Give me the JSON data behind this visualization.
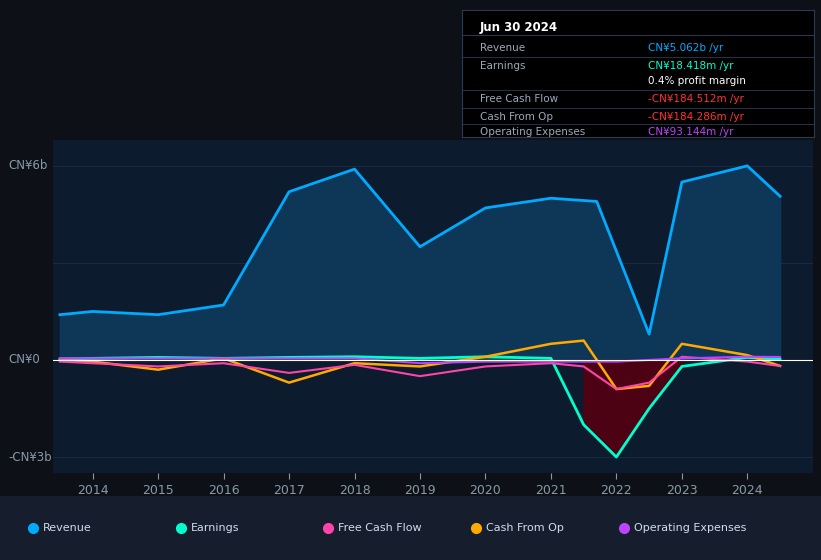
{
  "background_color": "#0d1117",
  "chart_bg": "#0d1b2e",
  "title_box_date": "Jun 30 2024",
  "title_box_rows": [
    {
      "label": "Revenue",
      "value": "CN¥5.062b /yr",
      "value_color": "#00aaff"
    },
    {
      "label": "Earnings",
      "value": "CN¥18.418m /yr",
      "value_color": "#00ffcc"
    },
    {
      "label": "",
      "value": "0.4% profit margin",
      "value_color": "#ffffff"
    },
    {
      "label": "Free Cash Flow",
      "value": "-CN¥184.512m /yr",
      "value_color": "#ff3333"
    },
    {
      "label": "Cash From Op",
      "value": "-CN¥184.286m /yr",
      "value_color": "#ff3333"
    },
    {
      "label": "Operating Expenses",
      "value": "CN¥93.144m /yr",
      "value_color": "#bb44ff"
    }
  ],
  "ylabel_top": "CN¥6b",
  "ylabel_zero": "CN¥0",
  "ylabel_bottom": "-CN¥3b",
  "ylim_min": -3500000000,
  "ylim_max": 6800000000,
  "xlim_min": 2013.4,
  "xlim_max": 2025.0,
  "x_ticks": [
    2014,
    2015,
    2016,
    2017,
    2018,
    2019,
    2020,
    2021,
    2022,
    2023,
    2024
  ],
  "revenue_x": [
    2013.5,
    2014.0,
    2015.0,
    2016.0,
    2017.0,
    2018.0,
    2019.0,
    2020.0,
    2021.0,
    2021.7,
    2022.5,
    2023.0,
    2024.0,
    2024.5
  ],
  "revenue_y": [
    1400,
    1500,
    1400,
    1700,
    5200,
    5900,
    3500,
    4700,
    5000,
    4900,
    800,
    5500,
    6000,
    5062
  ],
  "earnings_x": [
    2013.5,
    2014.0,
    2015.0,
    2016.0,
    2017.0,
    2018.0,
    2019.0,
    2020.0,
    2021.0,
    2021.5,
    2022.0,
    2022.5,
    2023.0,
    2024.0,
    2024.5
  ],
  "earnings_y": [
    30,
    50,
    80,
    50,
    80,
    100,
    50,
    100,
    50,
    -2000,
    -3000,
    -1500,
    -200,
    80,
    18
  ],
  "cashop_x": [
    2013.5,
    2014.0,
    2015.0,
    2016.0,
    2017.0,
    2018.0,
    2019.0,
    2020.0,
    2021.0,
    2021.5,
    2022.0,
    2022.5,
    2023.0,
    2024.0,
    2024.5
  ],
  "cashop_y": [
    0,
    -50,
    -300,
    50,
    -700,
    -100,
    -200,
    100,
    500,
    600,
    -900,
    -800,
    500,
    150,
    -184
  ],
  "freecf_x": [
    2013.5,
    2014.0,
    2015.0,
    2016.0,
    2017.0,
    2018.0,
    2019.0,
    2020.0,
    2021.0,
    2021.5,
    2022.0,
    2022.5,
    2023.0,
    2024.0,
    2024.5
  ],
  "freecf_y": [
    -50,
    -100,
    -200,
    -100,
    -400,
    -150,
    -500,
    -200,
    -100,
    -200,
    -900,
    -700,
    100,
    -50,
    -185
  ],
  "opexp_x": [
    2013.5,
    2014.0,
    2015.0,
    2016.0,
    2017.0,
    2018.0,
    2019.0,
    2020.0,
    2021.0,
    2022.0,
    2023.0,
    2024.0,
    2024.5
  ],
  "opexp_y": [
    50,
    50,
    50,
    50,
    50,
    50,
    -100,
    -50,
    -50,
    -50,
    50,
    100,
    93
  ],
  "revenue_color": "#00aaff",
  "revenue_fill": "#0d3a5c",
  "earn_color": "#00ffcc",
  "earn_fill_pos": "#005544",
  "earn_fill_neg": "#550011",
  "cashop_color": "#ffaa00",
  "freecf_color": "#ff44aa",
  "opexp_color": "#bb44ff",
  "zero_color": "#ffffff",
  "grid_color": "#1a2e45",
  "tick_color": "#8899aa",
  "legend_bg": "#161e2e",
  "box_bg": "#000000",
  "box_border": "#2a3a55",
  "box_sep": "#2a3a55",
  "label_color": "#99aabb",
  "legend_items": [
    {
      "label": "Revenue",
      "color": "#00aaff"
    },
    {
      "label": "Earnings",
      "color": "#00ffcc"
    },
    {
      "label": "Free Cash Flow",
      "color": "#ff44aa"
    },
    {
      "label": "Cash From Op",
      "color": "#ffaa00"
    },
    {
      "label": "Operating Expenses",
      "color": "#bb44ff"
    }
  ]
}
